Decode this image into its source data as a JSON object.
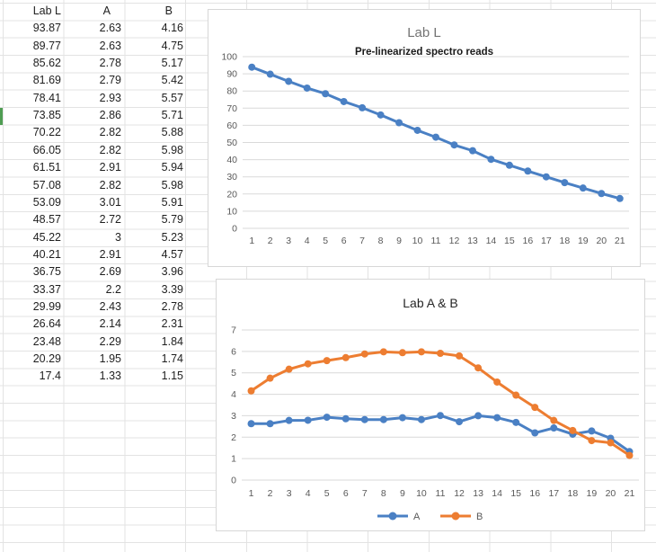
{
  "sheet": {
    "headers": [
      "Lab L",
      "A",
      "B"
    ],
    "rows": [
      [
        "93.87",
        "2.63",
        "4.16"
      ],
      [
        "89.77",
        "2.63",
        "4.75"
      ],
      [
        "85.62",
        "2.78",
        "5.17"
      ],
      [
        "81.69",
        "2.79",
        "5.42"
      ],
      [
        "78.41",
        "2.93",
        "5.57"
      ],
      [
        "73.85",
        "2.86",
        "5.71"
      ],
      [
        "70.22",
        "2.82",
        "5.88"
      ],
      [
        "66.05",
        "2.82",
        "5.98"
      ],
      [
        "61.51",
        "2.91",
        "5.94"
      ],
      [
        "57.08",
        "2.82",
        "5.98"
      ],
      [
        "53.09",
        "3.01",
        "5.91"
      ],
      [
        "48.57",
        "2.72",
        "5.79"
      ],
      [
        "45.22",
        "3",
        "5.23"
      ],
      [
        "40.21",
        "2.91",
        "4.57"
      ],
      [
        "36.75",
        "2.69",
        "3.96"
      ],
      [
        "33.37",
        "2.2",
        "3.39"
      ],
      [
        "29.99",
        "2.43",
        "2.78"
      ],
      [
        "26.64",
        "2.14",
        "2.31"
      ],
      [
        "23.48",
        "2.29",
        "1.84"
      ],
      [
        "20.29",
        "1.95",
        "1.74"
      ],
      [
        "17.4",
        "1.33",
        "1.15"
      ]
    ],
    "selection_color": "#4f9d53"
  },
  "colors": {
    "chart_grid": "#d9d9d9",
    "tick_label": "#595959",
    "chart_border": "#d7d7d7",
    "series_blue": "#4a80c4",
    "series_orange": "#ed7d31"
  },
  "chart_data": [
    {
      "type": "line",
      "title": "Lab L",
      "title_color": "#737373",
      "subtitle": "Pre-linearized spectro reads",
      "subtitle_color": "#1a1a1a",
      "x": [
        1,
        2,
        3,
        4,
        5,
        6,
        7,
        8,
        9,
        10,
        11,
        12,
        13,
        14,
        15,
        16,
        17,
        18,
        19,
        20,
        21
      ],
      "series": [
        {
          "name": "Lab L",
          "color": "#4a80c4",
          "values": [
            93.87,
            89.77,
            85.62,
            81.69,
            78.41,
            73.85,
            70.22,
            66.05,
            61.51,
            57.08,
            53.09,
            48.57,
            45.22,
            40.21,
            36.75,
            33.37,
            29.99,
            26.64,
            23.48,
            20.29,
            17.4
          ]
        }
      ],
      "ylim": [
        0,
        100
      ],
      "ytick_step": 10,
      "grid": true,
      "legend": "none"
    },
    {
      "type": "line",
      "title": "Lab A & B",
      "title_color": "#262626",
      "subtitle": "",
      "x": [
        1,
        2,
        3,
        4,
        5,
        6,
        7,
        8,
        9,
        10,
        11,
        12,
        13,
        14,
        15,
        16,
        17,
        18,
        19,
        20,
        21
      ],
      "series": [
        {
          "name": "A",
          "color": "#4a80c4",
          "values": [
            2.63,
            2.63,
            2.78,
            2.79,
            2.93,
            2.86,
            2.82,
            2.82,
            2.91,
            2.82,
            3.01,
            2.72,
            3,
            2.91,
            2.69,
            2.2,
            2.43,
            2.14,
            2.29,
            1.95,
            1.33
          ]
        },
        {
          "name": "B",
          "color": "#ed7d31",
          "values": [
            4.16,
            4.75,
            5.17,
            5.42,
            5.57,
            5.71,
            5.88,
            5.98,
            5.94,
            5.98,
            5.91,
            5.79,
            5.23,
            4.57,
            3.96,
            3.39,
            2.78,
            2.31,
            1.84,
            1.74,
            1.15
          ]
        }
      ],
      "ylim": [
        0,
        7
      ],
      "ytick_step": 1,
      "grid": true,
      "legend": "bottom"
    }
  ]
}
